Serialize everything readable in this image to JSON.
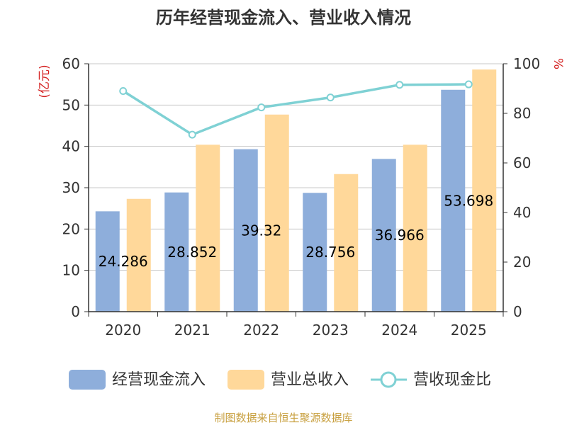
{
  "chart_data": {
    "type": "bar",
    "title": "历年经营现金流入、营业收入情况",
    "categories": [
      "2020",
      "2021",
      "2022",
      "2023",
      "2024",
      "2025"
    ],
    "series": [
      {
        "name": "经营现金流入",
        "type": "bar",
        "axis": "left",
        "color": "#8eaedb",
        "values": [
          24.286,
          28.852,
          39.32,
          28.756,
          36.966,
          53.698
        ],
        "data_labels": [
          "24.286",
          "28.852",
          "39.32",
          "28.756",
          "36.966",
          "53.698"
        ]
      },
      {
        "name": "营业总收入",
        "type": "bar",
        "axis": "left",
        "color": "#ffd89a",
        "values": [
          27.3,
          40.4,
          47.7,
          33.3,
          40.4,
          58.6
        ]
      },
      {
        "name": "营收现金比",
        "type": "line",
        "axis": "right",
        "color": "#7fd1d4",
        "values": [
          89,
          71.4,
          82.4,
          86.4,
          91.5,
          91.7
        ]
      }
    ],
    "y_left": {
      "label": "(亿元)",
      "ylim": [
        0,
        60
      ],
      "ticks": [
        "0",
        "10",
        "20",
        "30",
        "40",
        "50",
        "60"
      ]
    },
    "y_right": {
      "label": "%",
      "ylim": [
        0,
        100
      ],
      "ticks": [
        "0",
        "20",
        "40",
        "60",
        "80",
        "100"
      ]
    },
    "grid": true,
    "legend_position": "bottom"
  },
  "source": "制图数据来自恒生聚源数据库"
}
